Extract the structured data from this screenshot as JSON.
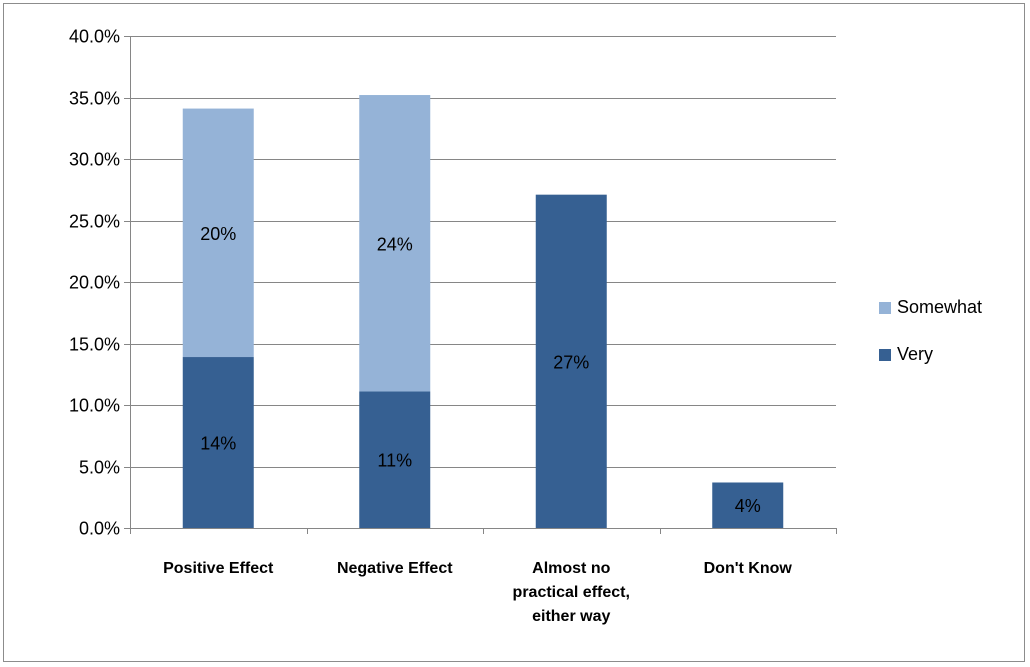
{
  "chart_data": {
    "type": "bar",
    "stacked": true,
    "title": "",
    "xlabel": "",
    "ylabel": "",
    "categories": [
      [
        "Positive Effect"
      ],
      [
        "Negative Effect"
      ],
      [
        "Almost no",
        "practical effect,",
        "either way"
      ],
      [
        "Don't Know"
      ]
    ],
    "series": [
      {
        "name": "Very",
        "color": "#366092",
        "values": [
          13.9,
          11.1,
          27.1,
          3.7
        ],
        "labels": [
          "14%",
          "11%",
          "27%",
          "4%"
        ]
      },
      {
        "name": "Somewhat",
        "color": "#95B3D7",
        "values": [
          20.2,
          24.1,
          0,
          0
        ],
        "labels": [
          "20%",
          "24%",
          "",
          ""
        ]
      }
    ],
    "ylim": [
      0,
      40
    ],
    "yticks": [
      "0.0%",
      "5.0%",
      "10.0%",
      "15.0%",
      "20.0%",
      "25.0%",
      "30.0%",
      "35.0%",
      "40.0%"
    ],
    "ytick_values": [
      0,
      5,
      10,
      15,
      20,
      25,
      30,
      35,
      40
    ],
    "grid": true,
    "legend_position": "right",
    "legend_order": [
      "Somewhat",
      "Very"
    ],
    "gridline_color": "#868686",
    "axis_color": "#868686"
  }
}
